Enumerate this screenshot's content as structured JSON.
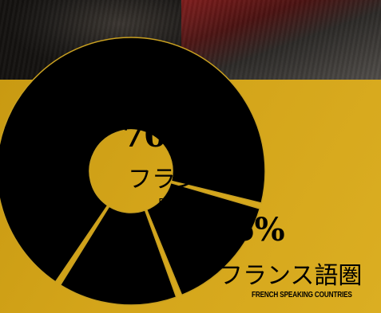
{
  "chart_data": {
    "type": "pie",
    "style": "donut",
    "slices": [
      {
        "percent": 70,
        "label_ja": "フランス",
        "label_en": "FRANCE"
      },
      {
        "percent": 15,
        "label_ja": "フランス語圏",
        "label_en": "FRENCH SPEAKING COUNTRIES"
      },
      {
        "percent": 15,
        "label_ja": "",
        "label_en": ""
      }
    ]
  },
  "colors": {
    "slice_fill": "#000000",
    "ring_outline": "#c9a020",
    "panel_gold": "#d4a51a"
  }
}
